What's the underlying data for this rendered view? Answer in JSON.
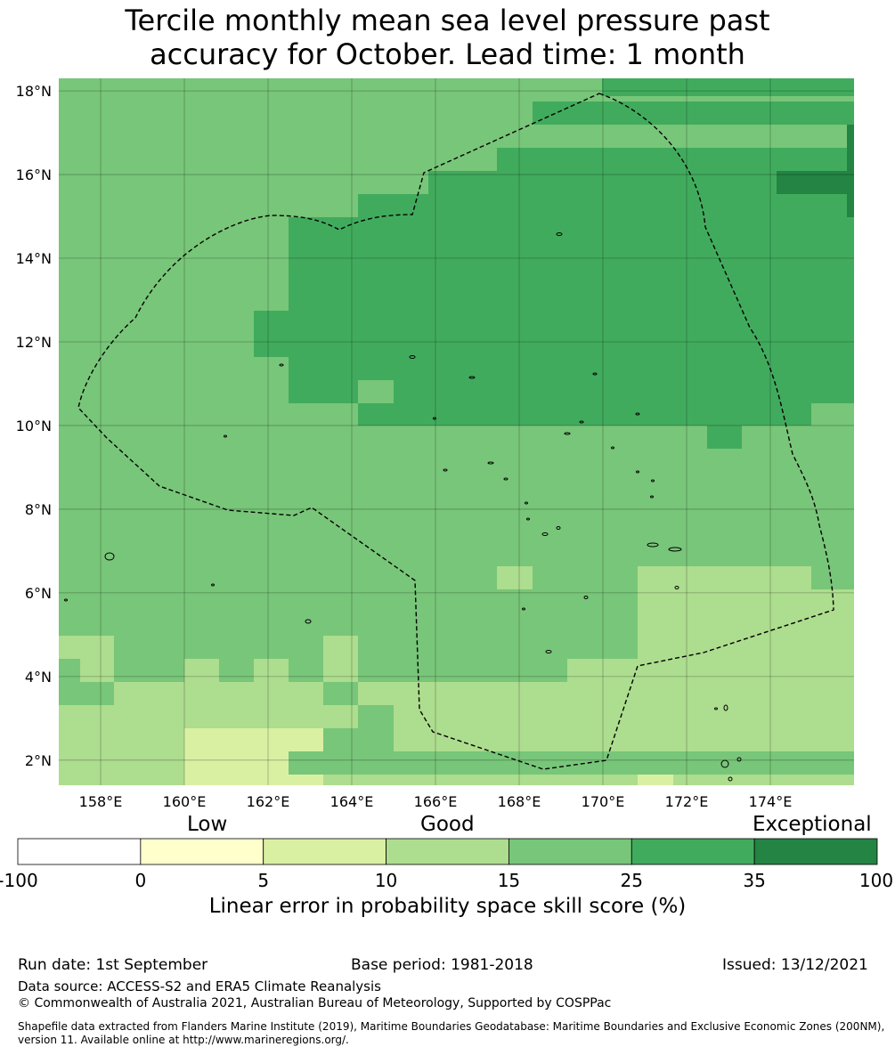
{
  "title": {
    "line1": "Tercile monthly mean sea level pressure past",
    "line2": "accuracy for October. Lead time: 1 month"
  },
  "map": {
    "lon_range": [
      157,
      176
    ],
    "lat_range": [
      1.4,
      18.3
    ],
    "x_ticks": [
      "158°E",
      "160°E",
      "162°E",
      "164°E",
      "166°E",
      "168°E",
      "170°E",
      "172°E",
      "174°E"
    ],
    "y_ticks": [
      "2°N",
      "4°N",
      "6°N",
      "8°N",
      "10°N",
      "12°N",
      "14°N",
      "16°N",
      "18°N"
    ],
    "gridlines": true,
    "boundary_style": "dashed black",
    "colors": {
      "c0": "#ffffcc",
      "c1": "#d9f0a3",
      "c2": "#addd8e",
      "c3": "#78c679",
      "c4": "#41ab5d",
      "c5": "#238443"
    }
  },
  "legend": {
    "tiers": [
      "Low",
      "Good",
      "Exceptional"
    ],
    "bins": [
      {
        "from": "-100",
        "to": "0",
        "color": "#ffffff"
      },
      {
        "from": "0",
        "to": "5",
        "color": "#ffffcc"
      },
      {
        "from": "5",
        "to": "10",
        "color": "#d9f0a3"
      },
      {
        "from": "10",
        "to": "15",
        "color": "#addd8e"
      },
      {
        "from": "15",
        "to": "25",
        "color": "#78c679"
      },
      {
        "from": "25",
        "to": "35",
        "color": "#41ab5d"
      },
      {
        "from": "35",
        "to": "100",
        "color": "#238443"
      }
    ],
    "ticks": [
      "-100",
      "0",
      "5",
      "10",
      "15",
      "25",
      "35",
      "100"
    ],
    "label": "Linear error in probability space skill score (%)"
  },
  "footer": {
    "run_date": "Run date: 1st September",
    "base_period": "Base period: 1981-2018",
    "issued": "Issued: 13/12/2021",
    "data_source": "Data source: ACCESS-S2 and ERA5 Climate Reanalysis",
    "copyright": "© Commonwealth of Australia 2021, Australian Bureau of Meteorology, Supported by COSPPac",
    "shapefile": "Shapefile data extracted from Flanders Marine Institute (2019), Maritime Boundaries Geodatabase: Maritime Boundaries and Exclusive Economic Zones (200NM), version 11. Available online at http://www.marineregions.org/."
  }
}
